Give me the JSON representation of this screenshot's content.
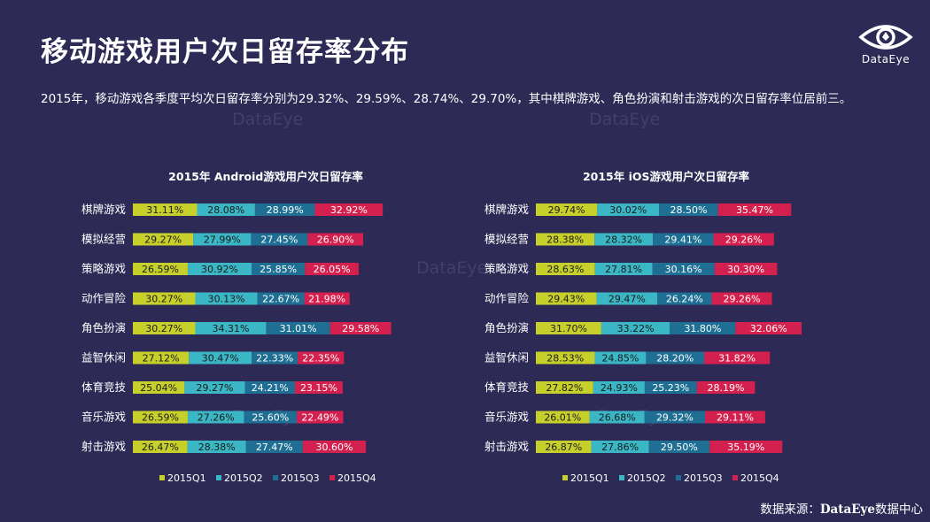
{
  "header": {
    "title": "移动游戏用户次日留存率分布",
    "subtitle": "2015年，移动游戏各季度平均次日留存率分别为29.32%、29.59%、28.74%、29.70%，其中棋牌游戏、角色扮演和射击游戏的次日留存率位居前三。"
  },
  "logo": {
    "text": "DataEye",
    "icon": "eye-icon"
  },
  "watermark": "DataEye",
  "colors": {
    "background": "#2e2a56",
    "Q1": "#c7d02a",
    "Q2": "#3bb6c4",
    "Q3": "#1f6f94",
    "Q4": "#d4204f"
  },
  "chart_data": [
    {
      "type": "bar",
      "stacked": true,
      "orientation": "horizontal",
      "title": "2015年 Android游戏用户次日留存率",
      "categories": [
        "棋牌游戏",
        "模拟经营",
        "策略游戏",
        "动作冒险",
        "角色扮演",
        "益智休闲",
        "体育竞技",
        "音乐游戏",
        "射击游戏"
      ],
      "series": [
        {
          "name": "2015Q1",
          "values": [
            31.11,
            29.27,
            26.59,
            30.27,
            30.27,
            27.12,
            25.04,
            26.59,
            26.47
          ]
        },
        {
          "name": "2015Q2",
          "values": [
            28.08,
            27.99,
            30.92,
            30.13,
            34.31,
            30.47,
            29.27,
            27.26,
            28.38
          ]
        },
        {
          "name": "2015Q3",
          "values": [
            28.99,
            27.45,
            25.85,
            22.67,
            31.01,
            22.33,
            24.21,
            25.6,
            27.47
          ]
        },
        {
          "name": "2015Q4",
          "values": [
            32.92,
            26.9,
            26.05,
            21.98,
            29.58,
            22.35,
            23.15,
            22.49,
            30.6
          ]
        }
      ],
      "legend": "bottom"
    },
    {
      "type": "bar",
      "stacked": true,
      "orientation": "horizontal",
      "title": "2015年 iOS游戏用户次日留存率",
      "categories": [
        "棋牌游戏",
        "模拟经营",
        "策略游戏",
        "动作冒险",
        "角色扮演",
        "益智休闲",
        "体育竞技",
        "音乐游戏",
        "射击游戏"
      ],
      "series": [
        {
          "name": "2015Q1",
          "values": [
            29.74,
            28.38,
            28.63,
            29.43,
            31.7,
            28.53,
            27.82,
            26.01,
            26.87
          ]
        },
        {
          "name": "2015Q2",
          "values": [
            30.02,
            28.32,
            27.81,
            29.47,
            33.22,
            24.85,
            24.93,
            26.68,
            27.86
          ]
        },
        {
          "name": "2015Q3",
          "values": [
            28.5,
            29.41,
            30.16,
            26.24,
            31.8,
            28.2,
            25.23,
            29.32,
            29.5
          ]
        },
        {
          "name": "2015Q4",
          "values": [
            35.47,
            29.26,
            30.3,
            29.26,
            32.06,
            31.82,
            28.19,
            29.11,
            35.19
          ]
        }
      ],
      "legend": "bottom"
    }
  ],
  "source": {
    "prefix": "数据来源：",
    "brand": "DataEye",
    "suffix": "数据中心"
  }
}
